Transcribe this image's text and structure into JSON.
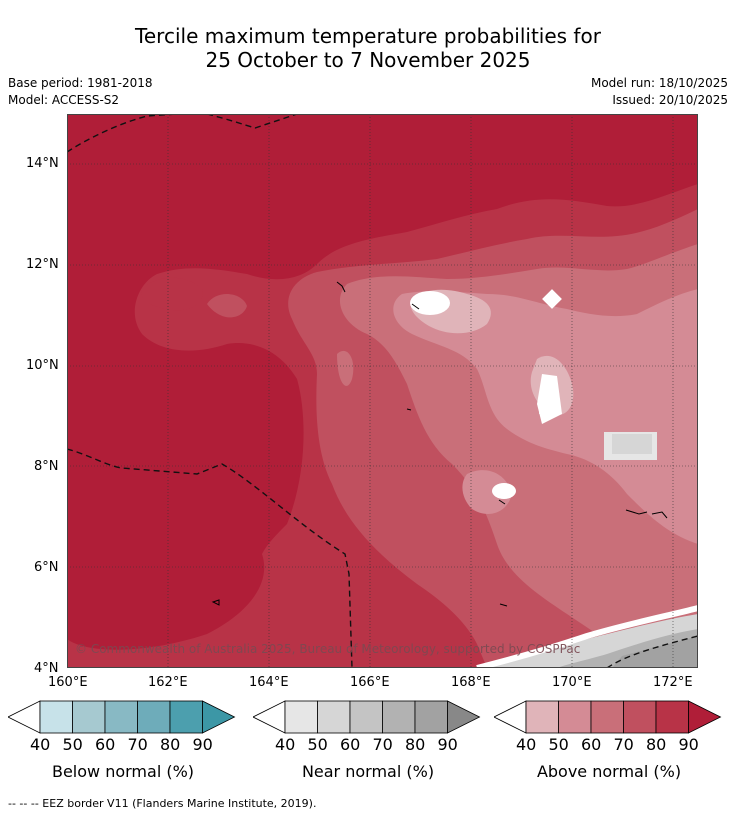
{
  "title": {
    "line1": "Tercile maximum temperature probabilities for",
    "line2": "25 October to 7 November 2025"
  },
  "meta": {
    "base_period": "Base period: 1981-2018",
    "model": "Model: ACCESS-S2",
    "model_run": "Model run: 18/10/2025",
    "issued": "Issued: 20/10/2025"
  },
  "map": {
    "lat_labels": [
      "14°N",
      "12°N",
      "10°N",
      "8°N",
      "6°N",
      "4°N"
    ],
    "lon_labels": [
      "160°E",
      "162°E",
      "164°E",
      "166°E",
      "168°E",
      "170°E",
      "172°E"
    ],
    "copyright": "© Commonwealth of Australia 2025, Bureau of Meteorology, supported by COSPPac"
  },
  "colorbars": [
    {
      "label": "Below normal (%)",
      "ticks": [
        "40",
        "50",
        "60",
        "70",
        "80",
        "90"
      ],
      "colors": [
        "#ffffff",
        "#c7e2e9",
        "#a6c9d0",
        "#88b9c4",
        "#6eacba",
        "#4c9fae",
        "#3c97a6"
      ]
    },
    {
      "label": "Near normal (%)",
      "ticks": [
        "40",
        "50",
        "60",
        "70",
        "80",
        "90"
      ],
      "colors": [
        "#ffffff",
        "#e6e6e6",
        "#d6d6d6",
        "#c4c4c4",
        "#b2b2b2",
        "#a2a2a2",
        "#888888"
      ]
    },
    {
      "label": "Above normal (%)",
      "ticks": [
        "40",
        "50",
        "60",
        "70",
        "80",
        "90"
      ],
      "colors": [
        "#ffffff",
        "#e0b4b9",
        "#d48b95",
        "#c96f79",
        "#c0505f",
        "#b83347",
        "#b01e38"
      ]
    }
  ],
  "footer": "-- -- -- EEZ border V11 (Flanders Marine Institute, 2019)."
}
